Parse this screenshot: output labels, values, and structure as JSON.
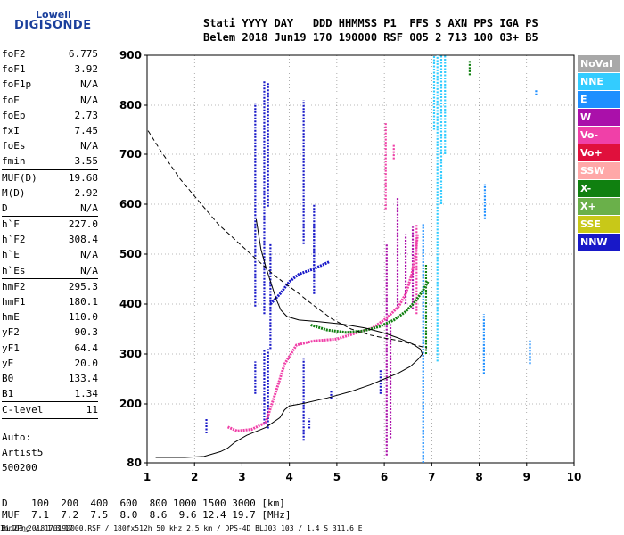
{
  "brand": {
    "line1": "Lowell",
    "line2": "DIGISONDE"
  },
  "header": {
    "line1": "Stati YYYY DAY   DDD HHMMSS P1  FFS S AXN PPS IGA PS",
    "line2": "Belem 2018 Jun19 170 190000 RSF 005 2 713 100 03+ B5"
  },
  "params": [
    {
      "name": "foF2",
      "value": "6.775"
    },
    {
      "name": "foF1",
      "value": "3.92"
    },
    {
      "name": "foF1p",
      "value": "N/A"
    },
    {
      "name": "foE",
      "value": "N/A"
    },
    {
      "name": "foEp",
      "value": "2.73"
    },
    {
      "name": "fxI",
      "value": "7.45"
    },
    {
      "name": "foEs",
      "value": "N/A"
    },
    {
      "name": "fmin",
      "value": "3.55"
    },
    {
      "name": "MUF(D)",
      "value": "19.68"
    },
    {
      "name": "M(D)",
      "value": "2.92"
    },
    {
      "name": "D",
      "value": "N/A"
    },
    {
      "name": "h`F",
      "value": "227.0"
    },
    {
      "name": "h`F2",
      "value": "308.4"
    },
    {
      "name": "h`E",
      "value": "N/A"
    },
    {
      "name": "h`Es",
      "value": "N/A"
    },
    {
      "name": "hmF2",
      "value": "295.3"
    },
    {
      "name": "hmF1",
      "value": "180.1"
    },
    {
      "name": "hmE",
      "value": "110.0"
    },
    {
      "name": "yF2",
      "value": "90.3"
    },
    {
      "name": "yF1",
      "value": "64.4"
    },
    {
      "name": "yE",
      "value": "20.0"
    },
    {
      "name": "B0",
      "value": "133.4"
    },
    {
      "name": "B1",
      "value": "1.34"
    },
    {
      "name": "C-level",
      "value": "11"
    }
  ],
  "auto": {
    "line1": "Auto:",
    "line2": "Artist5",
    "line3": "500200"
  },
  "legend": [
    {
      "label": "NoVal",
      "color": "#a8a8a8"
    },
    {
      "label": "NNE",
      "color": "#33ccff"
    },
    {
      "label": "E",
      "color": "#1e8fff"
    },
    {
      "label": "W",
      "color": "#aa10aa"
    },
    {
      "label": "Vo-",
      "color": "#f040a8"
    },
    {
      "label": "Vo+",
      "color": "#e0103c"
    },
    {
      "label": "SSW",
      "color": "#ffa8a8"
    },
    {
      "label": "X-",
      "color": "#108010"
    },
    {
      "label": "X+",
      "color": "#6ab04a"
    },
    {
      "label": "SSE",
      "color": "#c8c818"
    },
    {
      "label": "NNW",
      "color": "#1818c8"
    }
  ],
  "footer": {
    "d_row": "D    100  200  400  600  800 1000 1500 3000 [km]",
    "muf_row": "MUF  7.1  7.2  7.5  8.0  8.6  9.6 12.4 19.7 [MHz]",
    "note": "BLJ03_2018170190000.RSF / 180fx512h 50 kHz 2.5 km / DPS-4D BLJ03 103 / 1.4 S 311.6 E",
    "version": "Ion2Png v. 1.3.17"
  },
  "chart_data": {
    "type": "scatter",
    "title": "",
    "xlabel": "",
    "ylabel": "",
    "xlim": [
      1,
      10
    ],
    "ylim": [
      80,
      900
    ],
    "xticks": [
      "1",
      "2",
      "3",
      "4",
      "5",
      "6",
      "7",
      "8",
      "9",
      "10"
    ],
    "yticks": [
      "80",
      "200",
      "300",
      "400",
      "500",
      "600",
      "700",
      "800",
      "900"
    ],
    "grid": "dotted vertical and horizontal",
    "series": [
      {
        "name": "NNW",
        "color": "#1818c8",
        "segments": [
          [
            3.28,
            395,
            805
          ],
          [
            3.28,
            220,
            285
          ],
          [
            3.47,
            380,
            850
          ],
          [
            3.47,
            160,
            310
          ],
          [
            3.55,
            595,
            845
          ],
          [
            3.55,
            150,
            310
          ],
          [
            4.3,
            520,
            810
          ],
          [
            4.3,
            125,
            290
          ],
          [
            4.52,
            420,
            600
          ],
          [
            4.52,
            470,
            560
          ],
          [
            4.42,
            150,
            170
          ],
          [
            4.88,
            210,
            225
          ],
          [
            5.92,
            220,
            270
          ],
          [
            3.6,
            310,
            520
          ],
          [
            2.25,
            140,
            170
          ]
        ]
      },
      {
        "name": "W",
        "color": "#aa10aa",
        "segments": [
          [
            6.05,
            95,
            520
          ],
          [
            6.13,
            130,
            360
          ],
          [
            6.28,
            390,
            615
          ],
          [
            6.45,
            400,
            540
          ],
          [
            6.6,
            390,
            555
          ]
        ]
      },
      {
        "name": "Vo-",
        "color": "#f040a8",
        "segments": [
          [
            6.68,
            380,
            560
          ],
          [
            6.03,
            590,
            765
          ],
          [
            6.2,
            690,
            720
          ]
        ]
      },
      {
        "name": "NNE",
        "color": "#33ccff",
        "segments": [
          [
            7.12,
            285,
            900
          ],
          [
            7.2,
            600,
            900
          ],
          [
            7.28,
            700,
            900
          ],
          [
            7.05,
            750,
            900
          ]
        ]
      },
      {
        "name": "E",
        "color": "#1e8fff",
        "segments": [
          [
            6.82,
            80,
            560
          ],
          [
            8.1,
            260,
            380
          ],
          [
            8.12,
            570,
            640
          ],
          [
            9.07,
            280,
            330
          ],
          [
            9.2,
            820,
            830
          ]
        ]
      },
      {
        "name": "X-",
        "color": "#108010",
        "segments": [
          [
            7.8,
            860,
            890
          ],
          [
            6.88,
            300,
            480
          ]
        ]
      }
    ],
    "traces": [
      {
        "name": "Vo-",
        "color": "#f040a8",
        "points": [
          [
            2.7,
            153
          ],
          [
            2.9,
            145
          ],
          [
            3.2,
            148
          ],
          [
            3.5,
            162
          ],
          [
            3.7,
            220
          ],
          [
            3.9,
            280
          ],
          [
            4.15,
            318
          ],
          [
            4.5,
            326
          ],
          [
            5.0,
            330
          ],
          [
            5.4,
            342
          ],
          [
            5.75,
            352
          ],
          [
            6.05,
            372
          ],
          [
            6.3,
            395
          ],
          [
            6.45,
            420
          ],
          [
            6.58,
            460
          ],
          [
            6.66,
            500
          ],
          [
            6.7,
            540
          ]
        ]
      },
      {
        "name": "X-",
        "color": "#108010",
        "points": [
          [
            4.45,
            358
          ],
          [
            4.8,
            348
          ],
          [
            5.2,
            343
          ],
          [
            5.55,
            346
          ],
          [
            5.9,
            355
          ],
          [
            6.2,
            368
          ],
          [
            6.45,
            385
          ],
          [
            6.65,
            405
          ],
          [
            6.8,
            425
          ],
          [
            6.92,
            445
          ]
        ]
      },
      {
        "name": "NNW",
        "color": "#1818c8",
        "points": [
          [
            3.6,
            400
          ],
          [
            3.8,
            420
          ],
          [
            4.0,
            445
          ],
          [
            4.2,
            460
          ],
          [
            4.5,
            470
          ],
          [
            4.85,
            485
          ]
        ]
      }
    ],
    "profile_solid": [
      [
        1.18,
        91
      ],
      [
        1.8,
        91
      ],
      [
        2.2,
        93
      ],
      [
        2.55,
        103
      ],
      [
        2.7,
        110
      ],
      [
        2.85,
        122
      ],
      [
        3.1,
        136
      ],
      [
        3.5,
        152
      ],
      [
        3.8,
        172
      ],
      [
        3.9,
        188
      ],
      [
        4.0,
        196
      ],
      [
        4.3,
        201
      ],
      [
        4.8,
        212
      ],
      [
        5.3,
        225
      ],
      [
        5.7,
        238
      ],
      [
        6.0,
        250
      ],
      [
        6.3,
        262
      ],
      [
        6.55,
        275
      ],
      [
        6.72,
        290
      ],
      [
        6.8,
        300
      ],
      [
        6.76,
        310
      ],
      [
        6.6,
        320
      ],
      [
        6.3,
        332
      ],
      [
        6.0,
        342
      ],
      [
        5.6,
        352
      ],
      [
        5.1,
        360
      ],
      [
        4.6,
        365
      ],
      [
        4.2,
        368
      ],
      [
        3.95,
        375
      ],
      [
        3.82,
        388
      ],
      [
        3.72,
        410
      ],
      [
        3.62,
        440
      ],
      [
        3.5,
        475
      ],
      [
        3.4,
        510
      ],
      [
        3.3,
        570
      ]
    ],
    "profile_dashed": [
      [
        1.02,
        748
      ],
      [
        1.3,
        705
      ],
      [
        1.7,
        650
      ],
      [
        2.1,
        605
      ],
      [
        2.5,
        560
      ],
      [
        2.9,
        525
      ],
      [
        3.3,
        490
      ],
      [
        3.7,
        456
      ],
      [
        4.1,
        428
      ],
      [
        4.5,
        398
      ],
      [
        4.9,
        370
      ],
      [
        5.3,
        350
      ],
      [
        5.7,
        338
      ],
      [
        6.0,
        332
      ],
      [
        6.35,
        326
      ],
      [
        6.65,
        318
      ],
      [
        6.9,
        312
      ]
    ]
  }
}
